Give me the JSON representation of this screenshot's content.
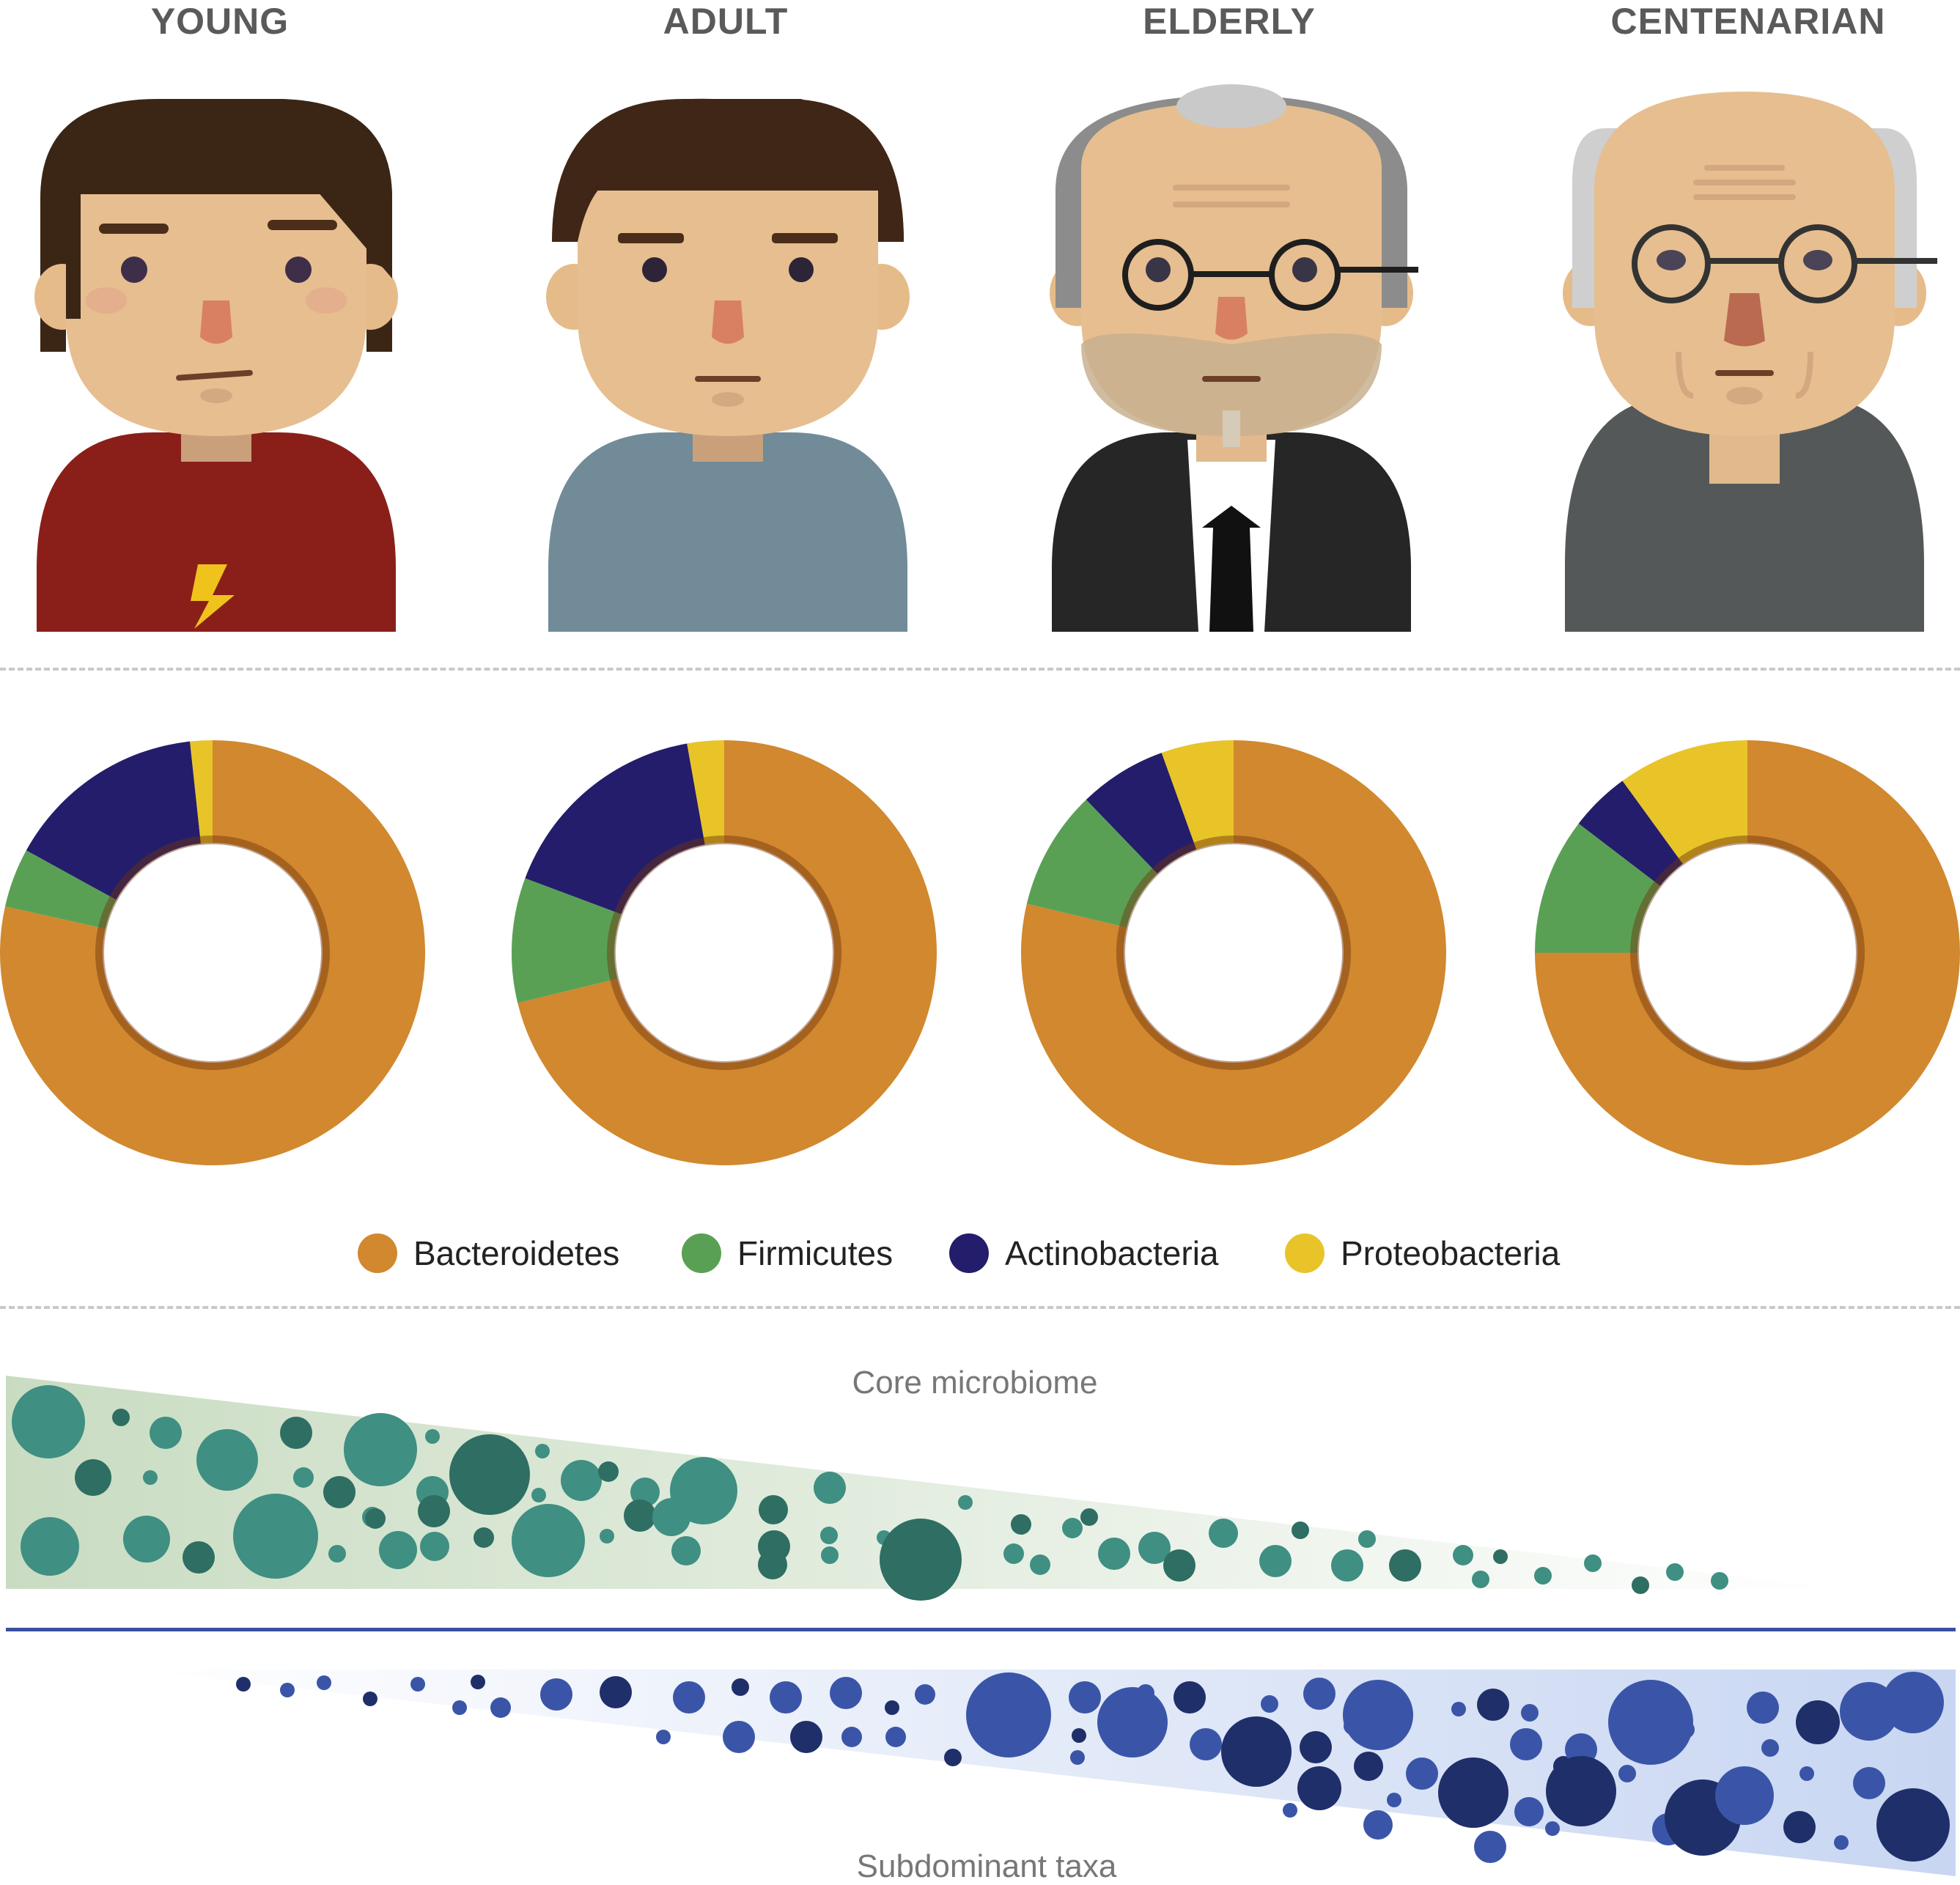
{
  "age_groups": {
    "young": "YOUNG",
    "adult": "ADULT",
    "elderly": "ELDERLY",
    "centenarian": "CENTENARIAN"
  },
  "legend": {
    "bacteroidetes": "Bacteroidetes",
    "firmicutes": "Firmicutes",
    "actinobacteria": "Actinobacteria",
    "proteobacteria": "Proteobacteria"
  },
  "core_label": "Core microbiome",
  "subdominant_label": "Subdominant taxa",
  "colors": {
    "bacteroidetes": "#d1882e",
    "firmicutes": "#5aa054",
    "actinobacteria": "#231d6b",
    "proteobacteria": "#e8c428",
    "core_bubble": "#3f8f82",
    "core_bubble_dark": "#2f6e62",
    "sub_bubble": "#3a55a8",
    "sub_bubble_dark": "#1f2f6a"
  },
  "chart_data": [
    {
      "type": "pie",
      "categories": [
        "YOUNG"
      ],
      "series": [
        {
          "name": "Bacteroidetes",
          "values": [
            0.785
          ]
        },
        {
          "name": "Firmicutes",
          "values": [
            0.045
          ]
        },
        {
          "name": "Actinobacteria",
          "values": [
            0.153
          ]
        },
        {
          "name": "Proteobacteria",
          "values": [
            0.017
          ]
        }
      ]
    },
    {
      "type": "pie",
      "categories": [
        "ADULT"
      ],
      "series": [
        {
          "name": "Bacteroidetes",
          "values": [
            0.712
          ]
        },
        {
          "name": "Firmicutes",
          "values": [
            0.095
          ]
        },
        {
          "name": "Actinobacteria",
          "values": [
            0.165
          ]
        },
        {
          "name": "Proteobacteria",
          "values": [
            0.028
          ]
        }
      ]
    },
    {
      "type": "pie",
      "categories": [
        "ELDERLY"
      ],
      "series": [
        {
          "name": "Bacteroidetes",
          "values": [
            0.787
          ]
        },
        {
          "name": "Firmicutes",
          "values": [
            0.091
          ]
        },
        {
          "name": "Actinobacteria",
          "values": [
            0.067
          ]
        },
        {
          "name": "Proteobacteria",
          "values": [
            0.055
          ]
        }
      ]
    },
    {
      "type": "pie",
      "categories": [
        "CENTENARIAN"
      ],
      "series": [
        {
          "name": "Bacteroidetes",
          "values": [
            0.75
          ]
        },
        {
          "name": "Firmicutes",
          "values": [
            0.104
          ]
        },
        {
          "name": "Actinobacteria",
          "values": [
            0.046
          ]
        },
        {
          "name": "Proteobacteria",
          "values": [
            0.1
          ]
        }
      ]
    }
  ]
}
